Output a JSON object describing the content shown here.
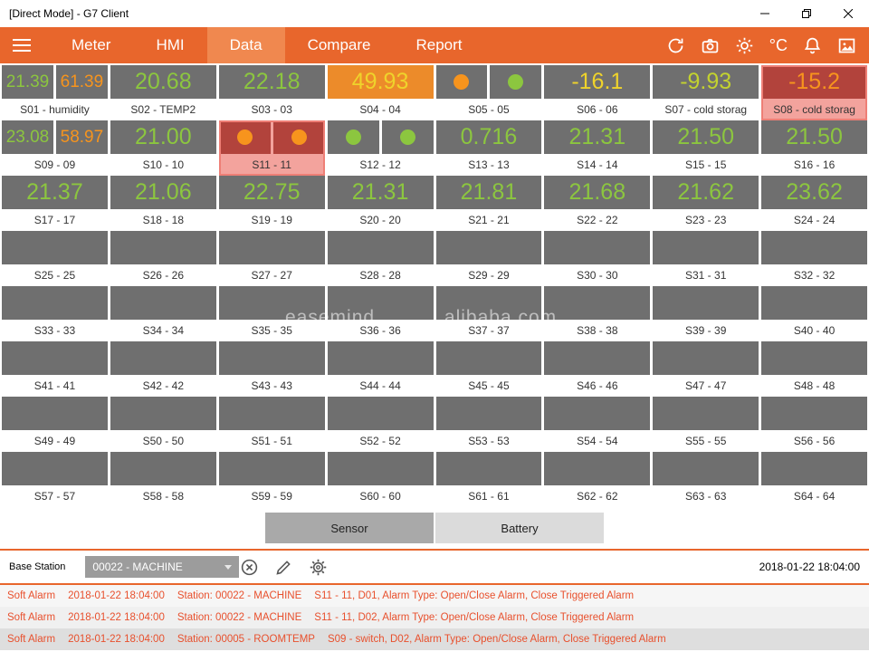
{
  "window": {
    "title": "[Direct Mode] - G7 Client"
  },
  "nav": {
    "tabs": [
      {
        "label": "Meter",
        "active": false
      },
      {
        "label": "HMI",
        "active": false
      },
      {
        "label": "Data",
        "active": true
      },
      {
        "label": "Compare",
        "active": false
      },
      {
        "label": "Report",
        "active": false
      }
    ],
    "celsius": "°C"
  },
  "tiles": [
    {
      "id": "S01",
      "label": "S01 - humidity",
      "type": "dual-value",
      "values": [
        "21.39",
        "61.39"
      ],
      "colors": [
        "green",
        "orange"
      ],
      "alarm": false
    },
    {
      "id": "S02",
      "label": "S02 - TEMP2",
      "type": "value",
      "values": [
        "20.68"
      ],
      "colors": [
        "green"
      ],
      "alarm": false
    },
    {
      "id": "S03",
      "label": "S03 - 03",
      "type": "value",
      "values": [
        "22.18"
      ],
      "colors": [
        "green"
      ],
      "alarm": false
    },
    {
      "id": "S04",
      "label": "S04 - 04",
      "type": "value",
      "values": [
        "49.93"
      ],
      "colors": [
        "yellow"
      ],
      "bg": "orange",
      "alarm": false
    },
    {
      "id": "S05",
      "label": "S05 - 05",
      "type": "dual-dot",
      "colors": [
        "orange",
        "green"
      ],
      "alarm": false
    },
    {
      "id": "S06",
      "label": "S06 - 06",
      "type": "value",
      "values": [
        "-16.1"
      ],
      "colors": [
        "yellow"
      ],
      "alarm": false
    },
    {
      "id": "S07",
      "label": "S07 - cold storag",
      "type": "value",
      "values": [
        "-9.93"
      ],
      "colors": [
        "lime"
      ],
      "alarm": false
    },
    {
      "id": "S08",
      "label": "S08 - cold storag",
      "type": "value",
      "values": [
        "-15.2"
      ],
      "colors": [
        "orange"
      ],
      "bg": "red",
      "alarm": true
    },
    {
      "id": "S09",
      "label": "S09 - 09",
      "type": "dual-value",
      "values": [
        "23.08",
        "58.97"
      ],
      "colors": [
        "green",
        "orange"
      ],
      "alarm": false
    },
    {
      "id": "S10",
      "label": "S10 - 10",
      "type": "value",
      "values": [
        "21.00"
      ],
      "colors": [
        "green"
      ],
      "alarm": false
    },
    {
      "id": "S11",
      "label": "S11 - 11",
      "type": "dual-dot",
      "colors": [
        "orange",
        "orange"
      ],
      "bg": "red",
      "alarm": true
    },
    {
      "id": "S12",
      "label": "S12 - 12",
      "type": "dual-dot",
      "colors": [
        "green",
        "green"
      ],
      "alarm": false
    },
    {
      "id": "S13",
      "label": "S13 - 13",
      "type": "value",
      "values": [
        "0.716"
      ],
      "colors": [
        "green"
      ],
      "alarm": false
    },
    {
      "id": "S14",
      "label": "S14 - 14",
      "type": "value",
      "values": [
        "21.31"
      ],
      "colors": [
        "green"
      ],
      "alarm": false
    },
    {
      "id": "S15",
      "label": "S15 - 15",
      "type": "value",
      "values": [
        "21.50"
      ],
      "colors": [
        "green"
      ],
      "alarm": false
    },
    {
      "id": "S16",
      "label": "S16 - 16",
      "type": "value",
      "values": [
        "21.50"
      ],
      "colors": [
        "green"
      ],
      "alarm": false
    },
    {
      "id": "S17",
      "label": "S17 - 17",
      "type": "value",
      "values": [
        "21.37"
      ],
      "colors": [
        "green"
      ],
      "alarm": false
    },
    {
      "id": "S18",
      "label": "S18 - 18",
      "type": "value",
      "values": [
        "21.06"
      ],
      "colors": [
        "green"
      ],
      "alarm": false
    },
    {
      "id": "S19",
      "label": "S19 - 19",
      "type": "value",
      "values": [
        "22.75"
      ],
      "colors": [
        "green"
      ],
      "alarm": false
    },
    {
      "id": "S20",
      "label": "S20 - 20",
      "type": "value",
      "values": [
        "21.31"
      ],
      "colors": [
        "green"
      ],
      "alarm": false
    },
    {
      "id": "S21",
      "label": "S21 - 21",
      "type": "value",
      "values": [
        "21.81"
      ],
      "colors": [
        "green"
      ],
      "alarm": false
    },
    {
      "id": "S22",
      "label": "S22 - 22",
      "type": "value",
      "values": [
        "21.68"
      ],
      "colors": [
        "green"
      ],
      "alarm": false
    },
    {
      "id": "S23",
      "label": "S23 - 23",
      "type": "value",
      "values": [
        "21.62"
      ],
      "colors": [
        "green"
      ],
      "alarm": false
    },
    {
      "id": "S24",
      "label": "S24 - 24",
      "type": "value",
      "values": [
        "23.62"
      ],
      "colors": [
        "green"
      ],
      "alarm": false
    },
    {
      "id": "S25",
      "label": "S25 - 25",
      "type": "empty",
      "alarm": false
    },
    {
      "id": "S26",
      "label": "S26 - 26",
      "type": "empty",
      "alarm": false
    },
    {
      "id": "S27",
      "label": "S27 - 27",
      "type": "empty",
      "alarm": false
    },
    {
      "id": "S28",
      "label": "S28 - 28",
      "type": "empty",
      "alarm": false
    },
    {
      "id": "S29",
      "label": "S29 - 29",
      "type": "empty",
      "alarm": false
    },
    {
      "id": "S30",
      "label": "S30 - 30",
      "type": "empty",
      "alarm": false
    },
    {
      "id": "S31",
      "label": "S31 - 31",
      "type": "empty",
      "alarm": false
    },
    {
      "id": "S32",
      "label": "S32 - 32",
      "type": "empty",
      "alarm": false
    },
    {
      "id": "S33",
      "label": "S33 - 33",
      "type": "empty",
      "alarm": false
    },
    {
      "id": "S34",
      "label": "S34 - 34",
      "type": "empty",
      "alarm": false
    },
    {
      "id": "S35",
      "label": "S35 - 35",
      "type": "empty",
      "alarm": false
    },
    {
      "id": "S36",
      "label": "S36 - 36",
      "type": "empty",
      "alarm": false
    },
    {
      "id": "S37",
      "label": "S37 - 37",
      "type": "empty",
      "alarm": false
    },
    {
      "id": "S38",
      "label": "S38 - 38",
      "type": "empty",
      "alarm": false
    },
    {
      "id": "S39",
      "label": "S39 - 39",
      "type": "empty",
      "alarm": false
    },
    {
      "id": "S40",
      "label": "S40 - 40",
      "type": "empty",
      "alarm": false
    },
    {
      "id": "S41",
      "label": "S41 - 41",
      "type": "empty",
      "alarm": false
    },
    {
      "id": "S42",
      "label": "S42 - 42",
      "type": "empty",
      "alarm": false
    },
    {
      "id": "S43",
      "label": "S43 - 43",
      "type": "empty",
      "alarm": false
    },
    {
      "id": "S44",
      "label": "S44 - 44",
      "type": "empty",
      "alarm": false
    },
    {
      "id": "S45",
      "label": "S45 - 45",
      "type": "empty",
      "alarm": false
    },
    {
      "id": "S46",
      "label": "S46 - 46",
      "type": "empty",
      "alarm": false
    },
    {
      "id": "S47",
      "label": "S47 - 47",
      "type": "empty",
      "alarm": false
    },
    {
      "id": "S48",
      "label": "S48 - 48",
      "type": "empty",
      "alarm": false
    },
    {
      "id": "S49",
      "label": "S49 - 49",
      "type": "empty",
      "alarm": false
    },
    {
      "id": "S50",
      "label": "S50 - 50",
      "type": "empty",
      "alarm": false
    },
    {
      "id": "S51",
      "label": "S51 - 51",
      "type": "empty",
      "alarm": false
    },
    {
      "id": "S52",
      "label": "S52 - 52",
      "type": "empty",
      "alarm": false
    },
    {
      "id": "S53",
      "label": "S53 - 53",
      "type": "empty",
      "alarm": false
    },
    {
      "id": "S54",
      "label": "S54 - 54",
      "type": "empty",
      "alarm": false
    },
    {
      "id": "S55",
      "label": "S55 - 55",
      "type": "empty",
      "alarm": false
    },
    {
      "id": "S56",
      "label": "S56 - 56",
      "type": "empty",
      "alarm": false
    },
    {
      "id": "S57",
      "label": "S57 - 57",
      "type": "empty",
      "alarm": false
    },
    {
      "id": "S58",
      "label": "S58 - 58",
      "type": "empty",
      "alarm": false
    },
    {
      "id": "S59",
      "label": "S59 - 59",
      "type": "empty",
      "alarm": false
    },
    {
      "id": "S60",
      "label": "S60 - 60",
      "type": "empty",
      "alarm": false
    },
    {
      "id": "S61",
      "label": "S61 - 61",
      "type": "empty",
      "alarm": false
    },
    {
      "id": "S62",
      "label": "S62 - 62",
      "type": "empty",
      "alarm": false
    },
    {
      "id": "S63",
      "label": "S63 - 63",
      "type": "empty",
      "alarm": false
    },
    {
      "id": "S64",
      "label": "S64 - 64",
      "type": "empty",
      "alarm": false
    }
  ],
  "controls": {
    "sensor": "Sensor",
    "battery": "Battery"
  },
  "base_station": {
    "label": "Base Station",
    "selected": "00022 - MACHINE",
    "timestamp": "2018-01-22 18:04:00"
  },
  "alarms": [
    {
      "type": "Soft Alarm",
      "time": "2018-01-22 18:04:00",
      "station": "Station: 00022 - MACHINE",
      "detail": "S11 - 11, D01, Alarm Type: Open/Close Alarm, Close Triggered Alarm"
    },
    {
      "type": "Soft Alarm",
      "time": "2018-01-22 18:04:00",
      "station": "Station: 00022 - MACHINE",
      "detail": "S11 - 11, D02, Alarm Type: Open/Close Alarm, Close Triggered Alarm"
    },
    {
      "type": "Soft Alarm",
      "time": "2018-01-22 18:04:00",
      "station": "Station: 00005 - ROOMTEMP",
      "detail": "S09 - switch, D02, Alarm Type: Open/Close Alarm, Close Triggered Alarm"
    }
  ],
  "watermark": {
    "left": "easemind",
    "right": ".alibaba.com"
  }
}
